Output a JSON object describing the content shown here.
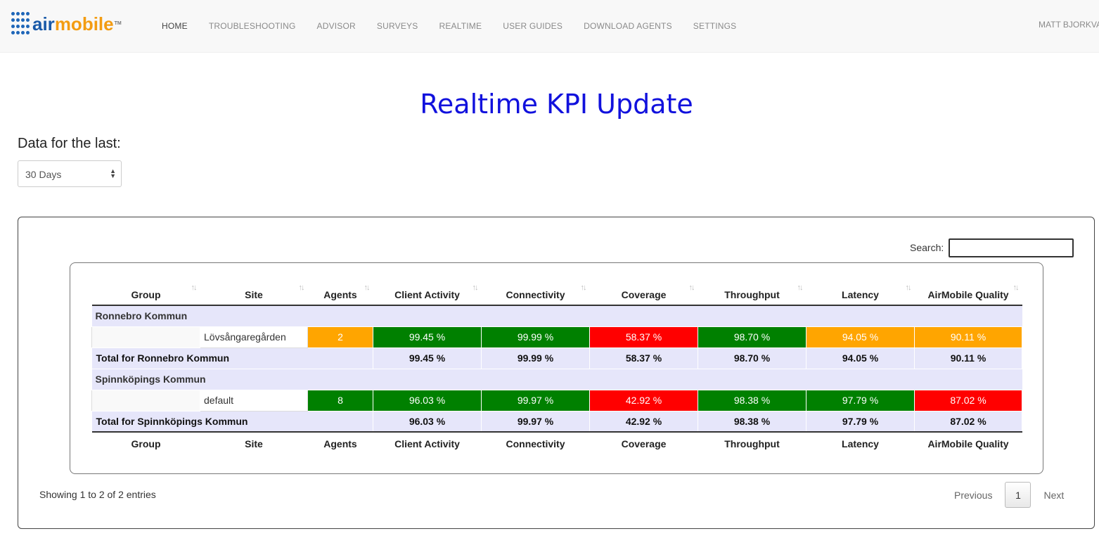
{
  "app": {
    "logo": {
      "air": "air",
      "mobile": "mobile",
      "tm": "TM"
    },
    "nav": [
      {
        "label": "HOME",
        "active": true
      },
      {
        "label": "TROUBLESHOOTING"
      },
      {
        "label": "ADVISOR"
      },
      {
        "label": "SURVEYS"
      },
      {
        "label": "REALTIME"
      },
      {
        "label": "USER GUIDES"
      },
      {
        "label": "DOWNLOAD AGENTS"
      },
      {
        "label": "SETTINGS"
      }
    ],
    "user": "MATT BJORKVAL"
  },
  "page": {
    "title": "Realtime KPI Update",
    "range_label": "Data for the last:",
    "range_value": "30 Days"
  },
  "search": {
    "label": "Search:",
    "value": ""
  },
  "table": {
    "columns": [
      "Group",
      "Site",
      "Agents",
      "Client Activity",
      "Connectivity",
      "Coverage",
      "Throughput",
      "Latency",
      "AirMobile Quality"
    ],
    "groups": [
      {
        "name": "Ronnebro Kommun",
        "site": {
          "name": "Lövsångaregården",
          "agents": "2",
          "values": [
            "99.45 %",
            "99.99 %",
            "58.37 %",
            "98.70 %",
            "94.05 %",
            "90.11 %"
          ]
        },
        "total_label": "Total for Ronnebro Kommun",
        "totals": [
          "99.45 %",
          "99.99 %",
          "58.37 %",
          "98.70 %",
          "94.05 %",
          "90.11 %"
        ]
      },
      {
        "name": "Spinnköpings Kommun",
        "site": {
          "name": "default",
          "agents": "8",
          "values": [
            "96.03 %",
            "99.97 %",
            "42.92 %",
            "98.38 %",
            "97.79 %",
            "87.02 %"
          ]
        },
        "total_label": "Total for Spinnköpings Kommun",
        "totals": [
          "96.03 %",
          "99.97 %",
          "42.92 %",
          "98.38 %",
          "97.79 %",
          "87.02 %"
        ]
      }
    ]
  },
  "colors": {
    "green": "#008000",
    "red": "#ff0000",
    "orange": "#ffa500",
    "group_bg": "#e6e6fa"
  },
  "footer": {
    "info": "Showing 1 to 2 of 2 entries",
    "previous": "Previous",
    "page": "1",
    "next": "Next"
  }
}
